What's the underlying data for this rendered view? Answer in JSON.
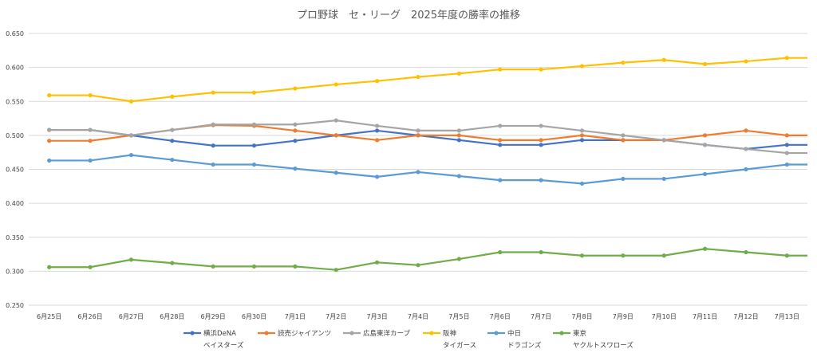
{
  "chart_data": {
    "type": "line",
    "title": "プロ野球　セ・リーグ　2025年度の勝率の推移",
    "xlabel": "",
    "ylabel": "",
    "ylim": [
      0.25,
      0.65
    ],
    "yticks": [
      "0.250",
      "0.300",
      "0.350",
      "0.400",
      "0.450",
      "0.500",
      "0.550",
      "0.600",
      "0.650"
    ],
    "categories": [
      "6月25日",
      "6月26日",
      "6月27日",
      "6月28日",
      "6月29日",
      "6月30日",
      "7月1日",
      "7月2日",
      "7月3日",
      "7月4日",
      "7月5日",
      "7月6日",
      "7月7日",
      "7月8日",
      "7月9日",
      "7月10日",
      "7月11日",
      "7月12日",
      "7月13日"
    ],
    "grid": true,
    "legend_position": "bottom",
    "series": [
      {
        "name": "横浜DeNA",
        "name_line2": "ベイスターズ",
        "color": "#4472C4",
        "values": [
          0.508,
          0.508,
          0.5,
          0.492,
          0.485,
          0.485,
          0.492,
          0.5,
          0.507,
          0.5,
          0.493,
          0.486,
          0.486,
          0.493,
          0.493,
          0.493,
          0.486,
          0.48,
          0.486
        ]
      },
      {
        "name": "読売ジャイアンツ",
        "name_line2": "",
        "color": "#ED7D31",
        "values": [
          0.492,
          0.492,
          0.5,
          0.508,
          0.515,
          0.514,
          0.507,
          0.5,
          0.493,
          0.5,
          0.5,
          0.493,
          0.493,
          0.5,
          0.493,
          0.493,
          0.5,
          0.507,
          0.5
        ]
      },
      {
        "name": "広島東洋カープ",
        "name_line2": "",
        "color": "#A5A5A5",
        "values": [
          0.508,
          0.508,
          0.5,
          0.508,
          0.516,
          0.516,
          0.516,
          0.522,
          0.514,
          0.507,
          0.507,
          0.514,
          0.514,
          0.507,
          0.5,
          0.493,
          0.486,
          0.48,
          0.474
        ]
      },
      {
        "name": "阪神",
        "name_line2": "タイガース",
        "color": "#FFC000",
        "values": [
          0.559,
          0.559,
          0.55,
          0.557,
          0.563,
          0.563,
          0.569,
          0.575,
          0.58,
          0.586,
          0.591,
          0.597,
          0.597,
          0.602,
          0.607,
          0.611,
          0.605,
          0.609,
          0.614
        ]
      },
      {
        "name": "中日",
        "name_line2": "ドラゴンズ",
        "color": "#5B9BD5",
        "values": [
          0.463,
          0.463,
          0.471,
          0.464,
          0.457,
          0.457,
          0.451,
          0.445,
          0.439,
          0.446,
          0.44,
          0.434,
          0.434,
          0.429,
          0.436,
          0.436,
          0.443,
          0.45,
          0.457
        ]
      },
      {
        "name": "東京",
        "name_line2": "ヤクルトスワローズ",
        "color": "#70AD47",
        "values": [
          0.306,
          0.306,
          0.317,
          0.312,
          0.307,
          0.307,
          0.307,
          0.302,
          0.313,
          0.309,
          0.318,
          0.328,
          0.328,
          0.323,
          0.323,
          0.323,
          0.333,
          0.328,
          0.323
        ]
      }
    ]
  }
}
